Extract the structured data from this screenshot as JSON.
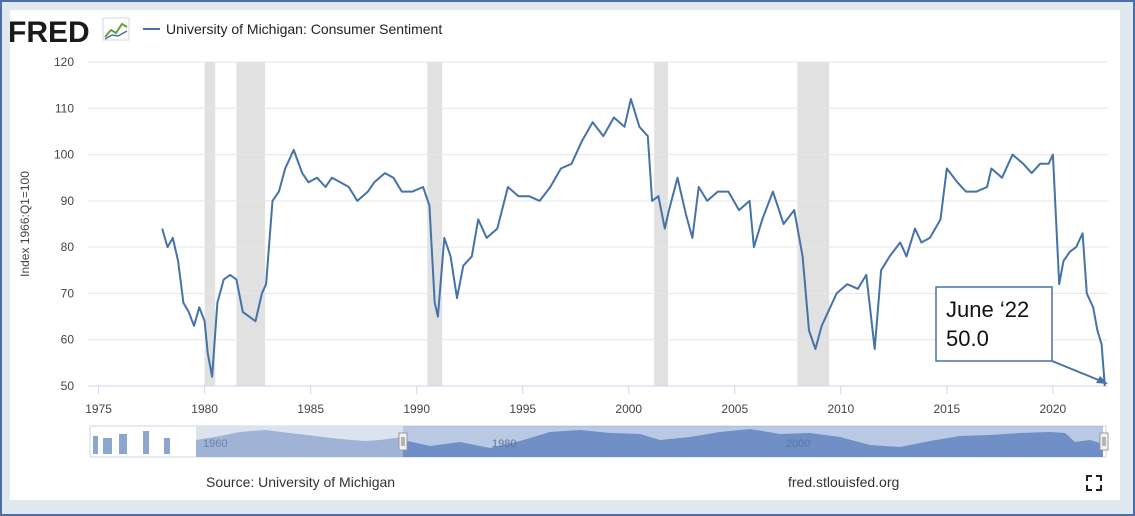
{
  "brand": {
    "name": "FRED"
  },
  "footer": {
    "source": "Source: University of Michigan",
    "site": "fred.stlouisfed.org"
  },
  "icons": {
    "fullscreen": "fullscreen-icon",
    "brand_chart": "mini-line-chart-icon"
  },
  "annotation": {
    "line1": "June ‘22",
    "line2": "50.0"
  },
  "navigator": {
    "left_label": "1960",
    "mid_label": "1980",
    "right_label": "2000"
  },
  "colors": {
    "series": "#4572a7",
    "recession": "#e1e1e1",
    "navigator": "#8da6cf",
    "frame": "#4a6fb0",
    "background": "#e1e9f0"
  },
  "chart_data": {
    "type": "line",
    "title": "",
    "xlabel": "",
    "ylabel": "Index 1966:Q1=100",
    "xlim": [
      1974.5,
      2022.6
    ],
    "ylim": [
      50,
      120
    ],
    "x_ticks": [
      1975,
      1980,
      1985,
      1990,
      1995,
      2000,
      2005,
      2010,
      2015,
      2020
    ],
    "y_ticks": [
      50,
      60,
      70,
      80,
      90,
      100,
      110,
      120
    ],
    "grid": true,
    "legend": "top-left",
    "recessions": [
      [
        1980.0,
        1980.5
      ],
      [
        1981.5,
        1982.85
      ],
      [
        1990.5,
        1991.2
      ],
      [
        2001.2,
        2001.85
      ],
      [
        2007.95,
        2009.45
      ]
    ],
    "series": [
      {
        "name": "University of Michigan: Consumer Sentiment",
        "x": [
          1978.0,
          1978.25,
          1978.5,
          1978.75,
          1979.0,
          1979.25,
          1979.5,
          1979.75,
          1980.0,
          1980.15,
          1980.35,
          1980.6,
          1980.9,
          1981.2,
          1981.5,
          1981.8,
          1982.1,
          1982.4,
          1982.7,
          1982.9,
          1983.2,
          1983.5,
          1983.8,
          1984.2,
          1984.6,
          1984.9,
          1985.3,
          1985.7,
          1986.0,
          1986.4,
          1986.8,
          1987.2,
          1987.7,
          1988.0,
          1988.5,
          1988.9,
          1989.3,
          1989.8,
          1990.3,
          1990.6,
          1990.85,
          1991.0,
          1991.3,
          1991.6,
          1991.9,
          1992.2,
          1992.6,
          1992.9,
          1993.3,
          1993.8,
          1994.3,
          1994.8,
          1995.3,
          1995.8,
          1996.3,
          1996.8,
          1997.3,
          1997.8,
          1998.3,
          1998.8,
          1999.3,
          1999.8,
          2000.1,
          2000.5,
          2000.9,
          2001.1,
          2001.4,
          2001.7,
          2001.9,
          2002.3,
          2002.7,
          2003.0,
          2003.3,
          2003.7,
          2004.2,
          2004.7,
          2005.2,
          2005.7,
          2005.9,
          2006.3,
          2006.8,
          2007.3,
          2007.8,
          2008.2,
          2008.5,
          2008.8,
          2009.1,
          2009.4,
          2009.8,
          2010.3,
          2010.8,
          2011.2,
          2011.6,
          2011.9,
          2012.3,
          2012.8,
          2013.1,
          2013.5,
          2013.8,
          2014.2,
          2014.7,
          2015.0,
          2015.5,
          2015.9,
          2016.4,
          2016.9,
          2017.1,
          2017.6,
          2018.1,
          2018.6,
          2019.0,
          2019.4,
          2019.8,
          2020.0,
          2020.3,
          2020.5,
          2020.8,
          2021.1,
          2021.4,
          2021.6,
          2021.9,
          2022.1,
          2022.3,
          2022.45
        ],
        "values": [
          84,
          80,
          82,
          77,
          68,
          66,
          63,
          67,
          64,
          57,
          52,
          68,
          73,
          74,
          73,
          66,
          65,
          64,
          70,
          72,
          90,
          92,
          97,
          101,
          96,
          94,
          95,
          93,
          95,
          94,
          93,
          90,
          92,
          94,
          96,
          95,
          92,
          92,
          93,
          89,
          68,
          65,
          82,
          78,
          69,
          76,
          78,
          86,
          82,
          84,
          93,
          91,
          91,
          90,
          93,
          97,
          98,
          103,
          107,
          104,
          108,
          106,
          112,
          106,
          104,
          90,
          91,
          84,
          88,
          95,
          87,
          82,
          93,
          90,
          92,
          92,
          88,
          90,
          80,
          86,
          92,
          85,
          88,
          78,
          62,
          58,
          63,
          66,
          70,
          72,
          71,
          74,
          58,
          75,
          78,
          81,
          78,
          84,
          81,
          82,
          86,
          97,
          94,
          92,
          92,
          93,
          97,
          95,
          100,
          98,
          96,
          98,
          98,
          100,
          72,
          77,
          79,
          80,
          83,
          70,
          67,
          62,
          59,
          50
        ]
      }
    ]
  }
}
